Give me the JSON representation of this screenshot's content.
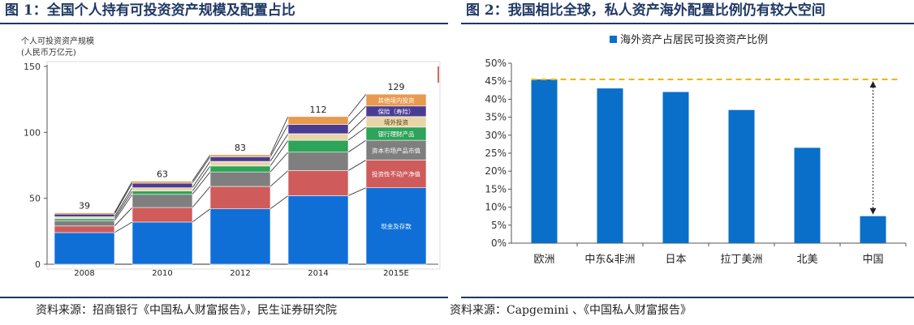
{
  "fig1": {
    "title": "图 1：全国个人持有可投资资产规模及配置占比",
    "source": "资料来源：招商银行《中国私人财富报告》，民生证券研究院"
  },
  "fig2": {
    "title": "图 2：我国相比全球，私人资产海外配置比例仍有较大空间",
    "source": "资料来源：Capgemini  、《中国私人财富报告》"
  },
  "colors": {
    "cash": "#0f6fd6",
    "real_estate": "#cf5b5b",
    "capital_market": "#7f7f7f",
    "bank_wmp": "#2ea35a",
    "overseas": "#e9d6a8",
    "insurance": "#4a3c93",
    "other": "#e89a4e",
    "bar2": "#0a6fc8",
    "dashed": "#f0b400",
    "title": "#1f3864"
  },
  "chart_data": [
    {
      "type": "bar",
      "stacked": true,
      "title": "个人可投资资产规模",
      "ylabel": "(人民币万亿元)",
      "xlabel": "",
      "categories": [
        "2008",
        "2010",
        "2012",
        "2014",
        "2015E"
      ],
      "ylim": [
        0,
        150
      ],
      "yticks": [
        "0",
        "50",
        "100",
        "150"
      ],
      "totals": [
        "39",
        "63",
        "83",
        "112",
        "129"
      ],
      "series": [
        {
          "name": "现金及存款",
          "values": [
            24,
            32,
            42,
            52,
            58
          ]
        },
        {
          "name": "投资性不动产净值",
          "values": [
            5,
            11,
            17,
            19,
            21
          ]
        },
        {
          "name": "资本市场产品市值",
          "values": [
            4,
            10,
            11,
            14,
            15
          ]
        },
        {
          "name": "银行理财产品",
          "values": [
            1.5,
            2.5,
            4.5,
            9,
            10
          ]
        },
        {
          "name": "境外投资",
          "values": [
            1.5,
            2.5,
            3.5,
            5,
            8
          ]
        },
        {
          "name": "保险（寿险）",
          "values": [
            2,
            3.5,
            3.5,
            7,
            8
          ]
        },
        {
          "name": "其他境内投资",
          "values": [
            1,
            1.5,
            1.5,
            6,
            9
          ]
        }
      ]
    },
    {
      "type": "bar",
      "title": "",
      "legend": "海外资产占居民可投资资产比例",
      "categories": [
        "欧洲",
        "中东&非洲",
        "日本",
        "拉丁美洲",
        "北美",
        "中国"
      ],
      "values": [
        45.5,
        43,
        42,
        37,
        26.5,
        7.5
      ],
      "ylim": [
        0,
        50
      ],
      "yticks": [
        "0%",
        "5%",
        "10%",
        "15%",
        "20%",
        "25%",
        "30%",
        "35%",
        "40%",
        "45%",
        "50%"
      ],
      "reference_line": 45.5
    }
  ]
}
